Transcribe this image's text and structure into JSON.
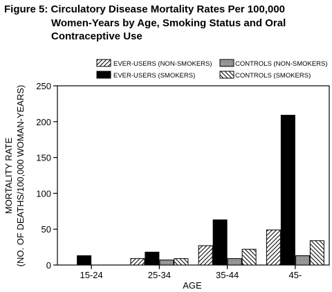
{
  "header": {
    "title_line1": "Figure 5: Circulatory Disease Mortality Rates Per 100,000",
    "title_line2": "Women-Years by Age, Smoking Status and Oral",
    "title_line3": "Contraceptive Use"
  },
  "chart_data": {
    "type": "bar",
    "title": "Figure 5: Circulatory Disease Mortality Rates Per 100,000 Women-Years by Age, Smoking Status and Oral Contraceptive Use",
    "xlabel": "AGE",
    "ylabel_line1": "MORTALITY RATE",
    "ylabel_line2": "(NO. OF DEATHS/100,000 WOMAN-YEARS)",
    "categories": [
      "15-24",
      "25-34",
      "35-44",
      "45-"
    ],
    "ylim": [
      0,
      250
    ],
    "yticks": [
      "0",
      "50",
      "100",
      "150",
      "200",
      "250"
    ],
    "grid": false,
    "legend_position": "top",
    "series": [
      {
        "name": "EVER-USERS (NON-SMOKERS)",
        "pattern": "diagonal-up",
        "values": [
          0,
          9,
          27,
          49
        ]
      },
      {
        "name": "EVER-USERS (SMOKERS)",
        "pattern": "solid-black",
        "values": [
          13,
          18,
          63,
          209
        ]
      },
      {
        "name": "CONTROLS (NON-SMOKERS)",
        "pattern": "dots",
        "values": [
          0,
          7,
          9,
          13
        ]
      },
      {
        "name": "CONTROLS (SMOKERS)",
        "pattern": "diagonal-down",
        "values": [
          0,
          9,
          22,
          34
        ]
      }
    ]
  }
}
